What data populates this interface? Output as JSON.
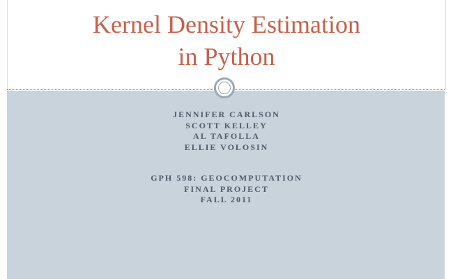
{
  "title": {
    "line1": "Kernel Density Estimation",
    "line2": "in Python"
  },
  "authors": [
    "JENNIFER CARLSON",
    "SCOTT KELLEY",
    "AL TAFOLLA",
    "ELLIE VOLOSIN"
  ],
  "course": [
    "GPH 598: GEOCOMPUTATION",
    "FINAL PROJECT",
    "FALL 2011"
  ]
}
